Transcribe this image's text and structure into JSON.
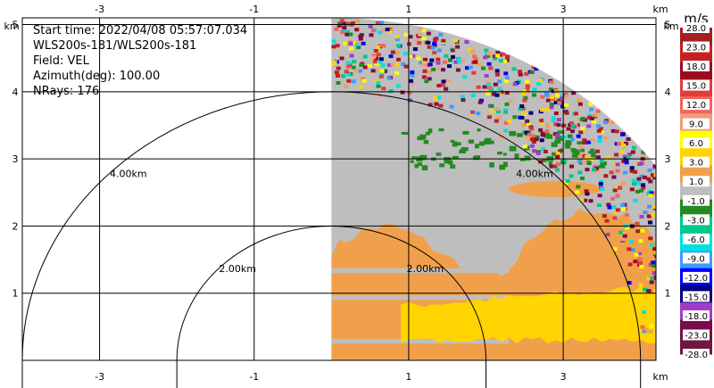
{
  "chart_data": {
    "type": "heatmap",
    "info": {
      "start_time": "Start time: 2022/04/08 05:57:07.034",
      "site": "WLS200s-181/WLS200s-181",
      "field": "Field: VEL",
      "azimuth": "Azimuth(deg): 100.00",
      "nrays": "NRays: 176"
    },
    "axis_unit": "km",
    "x_ticks": [
      "-3",
      "-1",
      "1",
      "3"
    ],
    "y_ticks": [
      "1",
      "2",
      "3",
      "4",
      "5"
    ],
    "x_range": [
      -4.0,
      4.2
    ],
    "y_range": [
      0,
      5.1
    ],
    "grid": true,
    "range_rings": [
      {
        "radius_km": 2.0,
        "label": "2.00km"
      },
      {
        "radius_km": 4.0,
        "label": "4.00km"
      }
    ],
    "colorbar": {
      "units": "m/s",
      "labels": [
        "28.0",
        "23.0",
        "18.0",
        "15.0",
        "12.0",
        "9.0",
        "6.0",
        "3.0",
        "1.0",
        "-1.0",
        "-3.0",
        "-6.0",
        "-9.0",
        "-12.0",
        "-15.0",
        "-18.0",
        "-23.0",
        "-28.0"
      ],
      "colors": [
        "#a51e22",
        "#c81f25",
        "#9b0a1e",
        "#e03c3c",
        "#f0655a",
        "#f39b7e",
        "#ffff00",
        "#ffd400",
        "#f0a04b",
        "#bebebe",
        "#228b22",
        "#00c88c",
        "#00e0e0",
        "#3c9bff",
        "#0000ff",
        "#000080",
        "#a03cc8",
        "#7a0a50",
        "#6e1840"
      ]
    },
    "velocity_bands": [
      {
        "min_km": 0.0,
        "max_km": 2.3,
        "class": "positive 1.0 to 3.0 m/s"
      },
      {
        "min_km": 0.1,
        "max_km": 0.7,
        "class": "positive 3.0 to 6.0 m/s"
      },
      {
        "min_km": 2.3,
        "max_km": 4.2,
        "class": "-1.0 to 1.0 m/s"
      },
      {
        "min_km": 3.0,
        "max_km": 3.5,
        "class": "-3.0 to -1.0 m/s (sparse)"
      },
      {
        "min_km": 4.0,
        "max_km": 5.1,
        "class": "mixed / noise"
      }
    ]
  }
}
